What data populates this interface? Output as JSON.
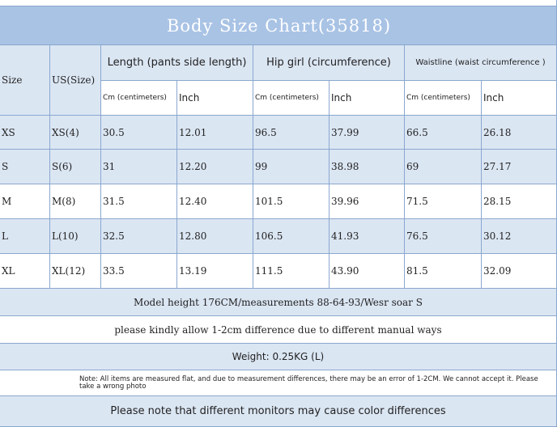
{
  "header": {
    "title": "Body Size Chart(35818)"
  },
  "table": {
    "size_header": "Size",
    "us_header": "US(Size)",
    "groups": [
      "Length (pants side length)",
      "Hip girl (circumference)",
      "Waistline (waist circumference )"
    ],
    "units": [
      "Cm (centimeters)",
      "Inch",
      "Cm (centimeters)",
      "Inch",
      "Cm (centimeters)",
      "Inch"
    ],
    "rows": [
      [
        "XS",
        "XS(4)",
        "30.5",
        "12.01",
        "96.5",
        "37.99",
        "66.5",
        "26.18"
      ],
      [
        "S",
        "S(6)",
        "31",
        "12.20",
        "99",
        "38.98",
        "69",
        "27.17"
      ],
      [
        "M",
        "M(8)",
        "31.5",
        "12.40",
        "101.5",
        "39.96",
        "71.5",
        "28.15"
      ],
      [
        "L",
        "L(10)",
        "32.5",
        "12.80",
        "106.5",
        "41.93",
        "76.5",
        "30.12"
      ],
      [
        "XL",
        "XL(12)",
        "33.5",
        "13.19",
        "111.5",
        "43.90",
        "81.5",
        "32.09"
      ]
    ]
  },
  "notes": [
    "Model height 176CM/measurements 88-64-93/Wesr soar S",
    "please kindly allow 1-2cm difference due to different manual ways",
    "Weight: 0.25KG (L)",
    "Note: All items are measured flat, and due to measurement differences, there may be an error of 1-2CM. We cannot accept it. Please take a wrong photo",
    "Please note that different monitors may cause color differences"
  ]
}
